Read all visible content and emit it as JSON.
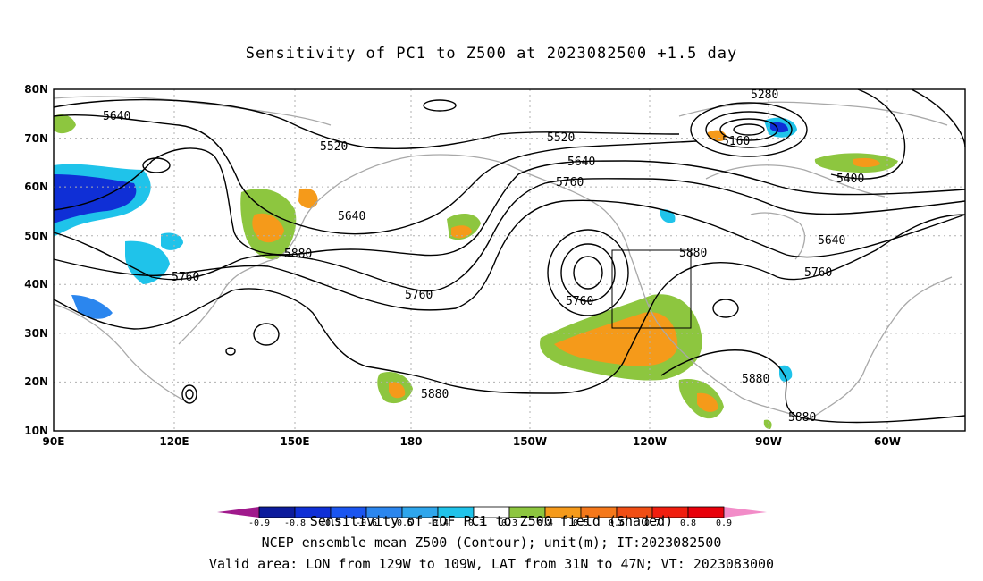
{
  "title": "Sensitivity of PC1 to Z500 at 2023082500 +1.5 day",
  "axes": {
    "lat_labels": [
      "80N",
      "70N",
      "60N",
      "50N",
      "40N",
      "30N",
      "20N",
      "10N"
    ],
    "lon_labels": [
      "90E",
      "120E",
      "150E",
      "180",
      "150W",
      "120W",
      "90W",
      "60W"
    ]
  },
  "contour_labels": [
    "5640",
    "5520",
    "5520",
    "5280",
    "5160",
    "5640",
    "5760",
    "5640",
    "5760",
    "5880",
    "5760",
    "5400",
    "5640",
    "5880",
    "5760",
    "5760",
    "5880",
    "5880",
    "5880"
  ],
  "colorbar": {
    "ticks": [
      "-0.9",
      "-0.8",
      "-0.7",
      "-0.6",
      "-0.5",
      "-0.4",
      "-0.3",
      "0.3",
      "0.4",
      "0.5",
      "0.6",
      "0.7",
      "0.8",
      "0.9"
    ],
    "colors": [
      "#0c1b9c",
      "#0f2fd6",
      "#1a55f0",
      "#2b86ee",
      "#2ea6ec",
      "#1fc3ea",
      "#ffffff",
      "#8dc63f",
      "#f59a1a",
      "#f5781a",
      "#f04e14",
      "#f01e0e",
      "#e8000a"
    ],
    "low_arrow_color": "#a01a8c",
    "high_arrow_color": "#f28cc8"
  },
  "captions": [
    "Sensitivity of EOF PC1 to Z500 field (Shaded)",
    "NCEP ensemble mean Z500 (Contour); unit(m); IT:2023082500",
    "Valid area: LON from 129W to 109W, LAT from 31N to 47N; VT: 2023083000"
  ],
  "colors": {
    "positive": "#8dc63f",
    "positive_strong": "#f59a1a",
    "negative": "#1fc3ea",
    "negative_strong": "#0f2fd6",
    "coast": "#a8a8a8"
  }
}
